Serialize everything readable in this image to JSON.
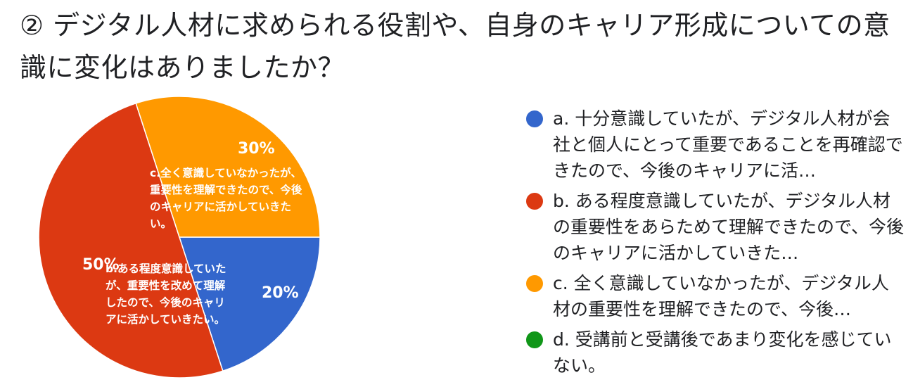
{
  "title": "② デジタル人材に求められる役割や、自身のキャリア形成についての意識に変化はありましたか？",
  "chart_data": {
    "type": "pie",
    "title": "② デジタル人材に求められる役割や、自身のキャリア形成についての意識に変化はありましたか？",
    "legend_position": "right",
    "slices": [
      {
        "legend": "a. 十分意識していたが、デジタル人材が会社と個人にとって重要であることを再確認できたので、今後のキャリアに活…",
        "value": 20,
        "label": "20%",
        "caption": "",
        "color": "#3366cc"
      },
      {
        "legend": "b. ある程度意識していたが、デジタル人材の重要性をあらためて理解できたので、今後のキャリアに活かしていきた…",
        "value": 50,
        "label": "50%",
        "caption": "b.ある程度意識していたが、重要性を改めて理解したので、今後のキャリアに活かしていきたい。",
        "color": "#dc3912"
      },
      {
        "legend": "c. 全く意識していなかったが、デジタル人材の重要性を理解できたので、今後…",
        "value": 30,
        "label": "30%",
        "caption": "c.全く意識していなかったが、重要性を理解できたので、今後のキャリアに活かしていきたい。",
        "color": "#ff9900"
      },
      {
        "legend": "d. 受講前と受講後であまり変化を感じていない。",
        "value": 0,
        "label": "",
        "caption": "",
        "color": "#109618"
      }
    ]
  }
}
